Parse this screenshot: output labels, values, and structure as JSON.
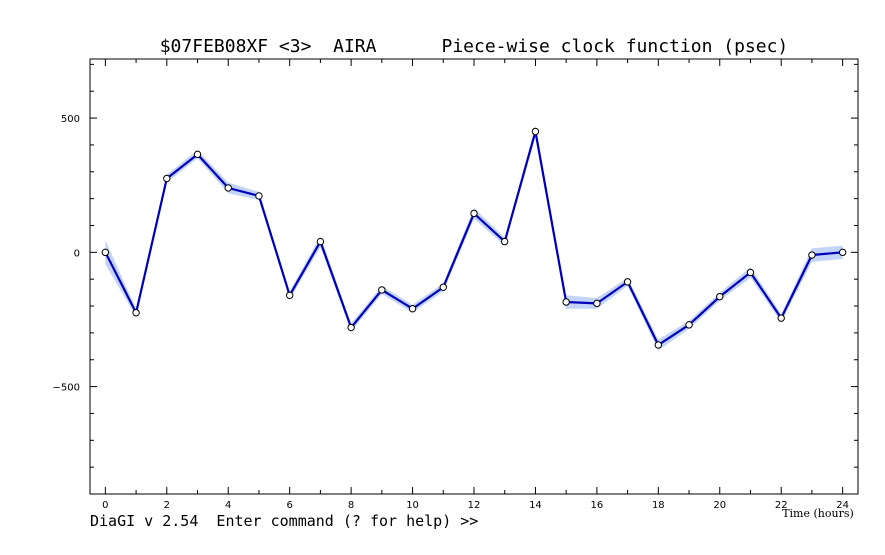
{
  "chart_data": {
    "type": "line",
    "title": "$07FEB08XF <3>  AIRA      Piece-wise clock function (psec)",
    "xlabel": "Time (hours)",
    "ylabel": "",
    "xlim": [
      -0.5,
      24.5
    ],
    "ylim": [
      -900,
      720
    ],
    "x_ticks": [
      0,
      2,
      4,
      6,
      8,
      10,
      12,
      14,
      16,
      18,
      20,
      22,
      24
    ],
    "y_ticks": [
      500,
      0,
      -500
    ],
    "grid": false,
    "legend": "none",
    "series": [
      {
        "x": [
          0,
          1,
          2,
          3,
          4,
          5,
          6,
          7,
          8,
          9,
          10,
          11,
          12,
          13,
          14,
          15,
          16,
          17,
          18,
          19,
          20,
          21,
          22,
          23,
          24
        ],
        "values": [
          0,
          -225,
          275,
          365,
          240,
          210,
          -160,
          40,
          -280,
          -140,
          -210,
          -130,
          145,
          40,
          450,
          -185,
          -190,
          -110,
          -345,
          -270,
          -165,
          -75,
          -245,
          -10,
          0
        ],
        "errors": [
          45,
          15,
          15,
          15,
          20,
          15,
          15,
          20,
          15,
          15,
          15,
          15,
          20,
          15,
          20,
          25,
          20,
          15,
          20,
          15,
          15,
          20,
          15,
          25,
          25
        ]
      }
    ],
    "colors": {
      "line": "#0000bb",
      "band": "#b8cdf5",
      "marker_fill": "#ffffff"
    }
  },
  "prompt": "DiaGI v 2.54  Enter command (? for help) >>"
}
